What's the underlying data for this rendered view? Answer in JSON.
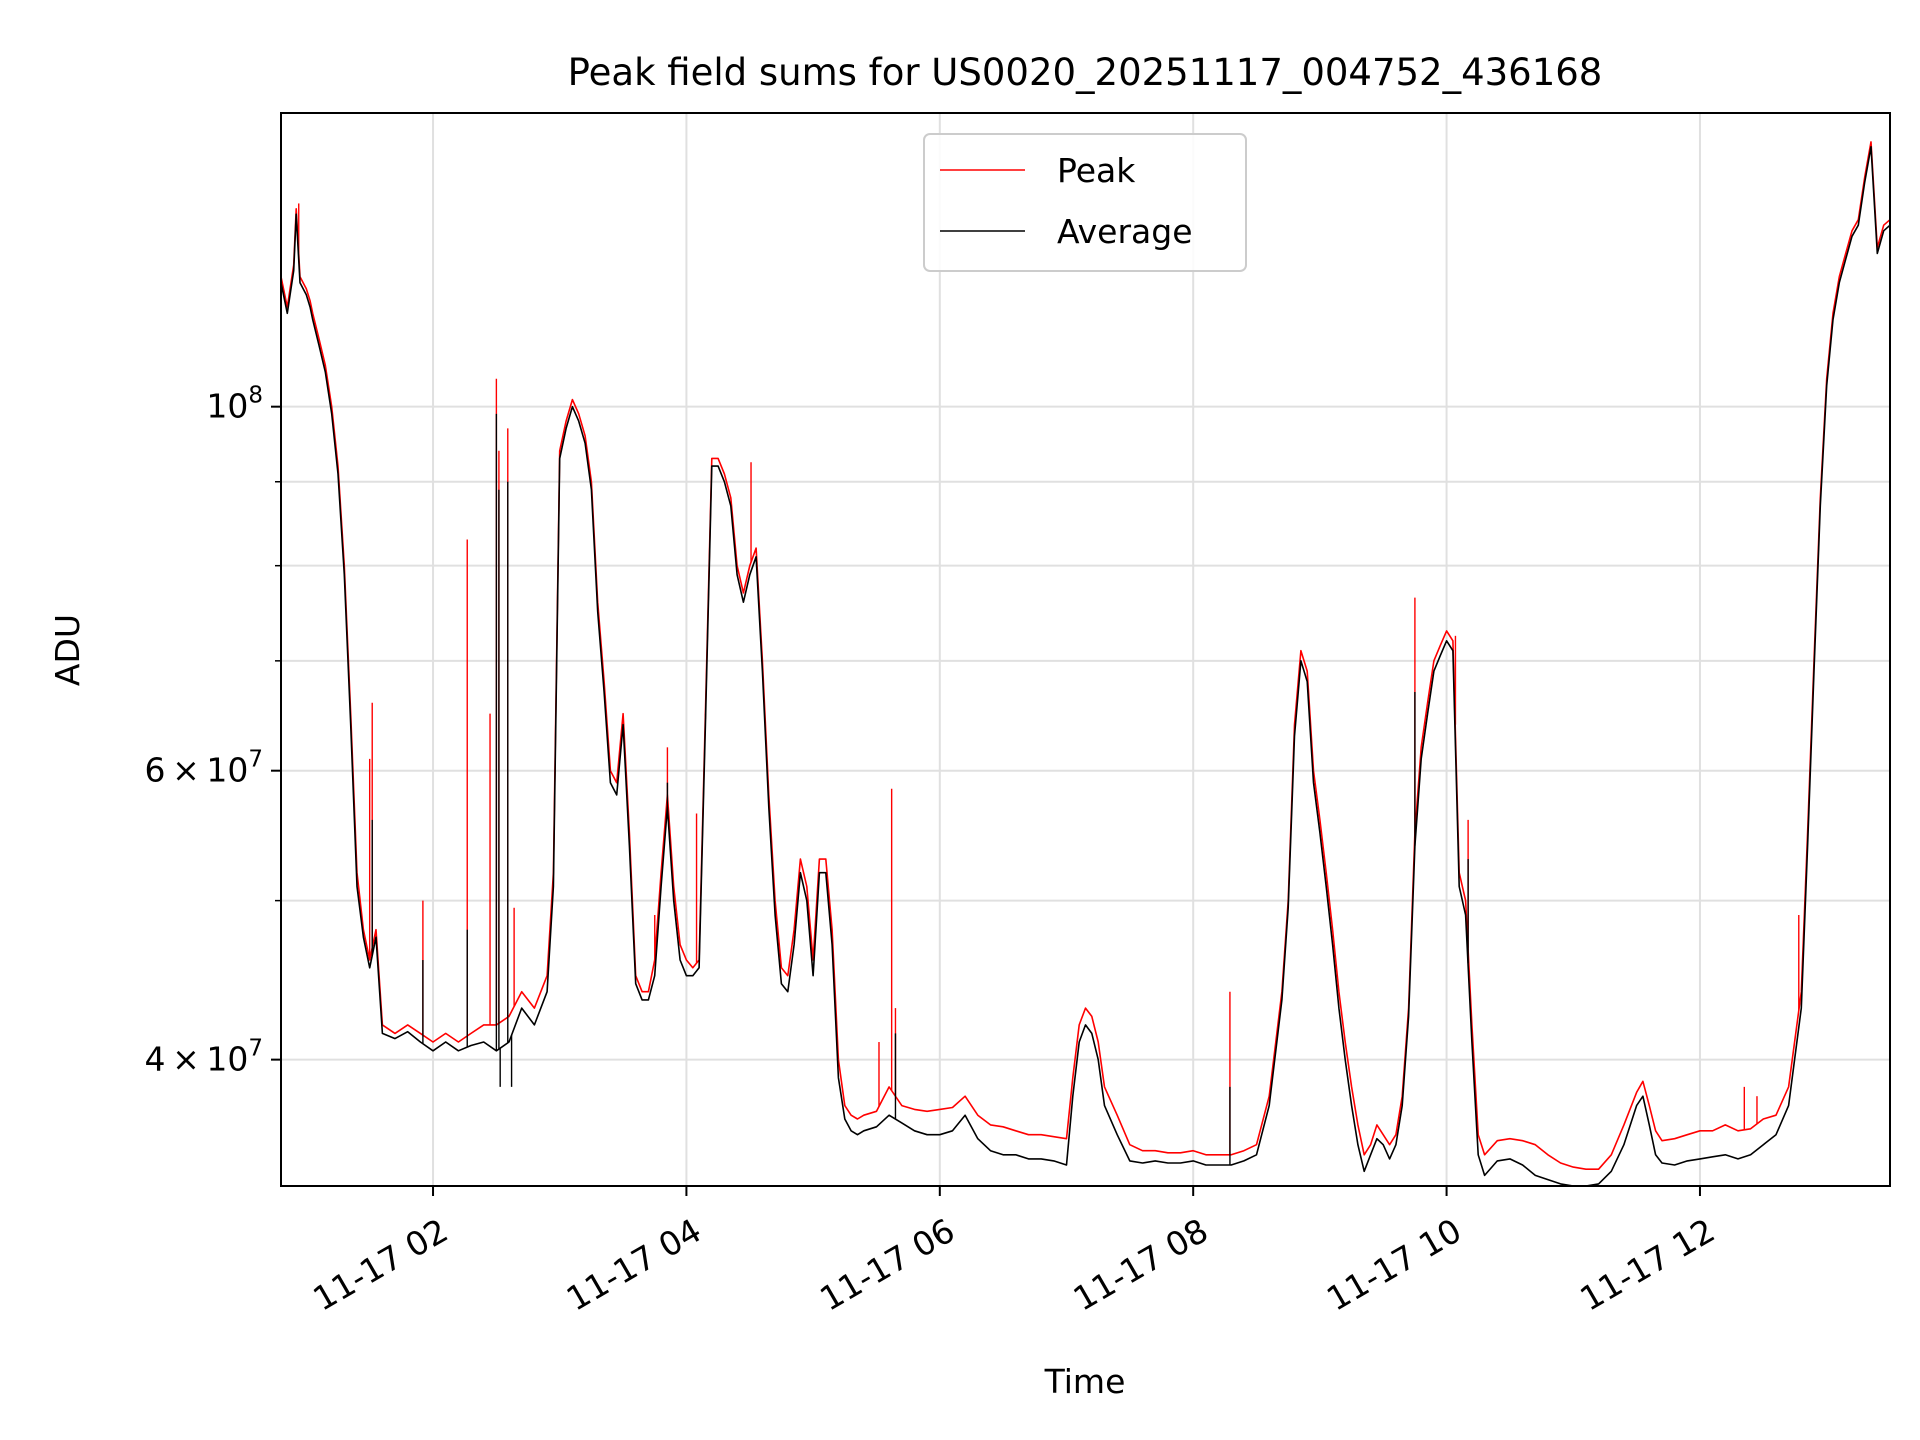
{
  "chart_data": {
    "type": "line",
    "title": "Peak field sums for US0020_20251117_004752_436168",
    "xlabel": "Time",
    "ylabel": "ADU",
    "yscale": "log",
    "grid": true,
    "legend_position": "upper-center",
    "xlim": [
      0.8,
      13.5
    ],
    "ylim": [
      33500000,
      151000000
    ],
    "x_ticks": [
      {
        "value": 2,
        "label": "11-17 02"
      },
      {
        "value": 4,
        "label": "11-17 04"
      },
      {
        "value": 6,
        "label": "11-17 06"
      },
      {
        "value": 8,
        "label": "11-17 08"
      },
      {
        "value": 10,
        "label": "11-17 10"
      },
      {
        "value": 12,
        "label": "11-17 12"
      }
    ],
    "y_ticks": [
      {
        "value": 40000000,
        "mantissa": "4",
        "exponent": "7"
      },
      {
        "value": 60000000,
        "mantissa": "6",
        "exponent": "7"
      },
      {
        "value": 100000000,
        "mantissa": "",
        "exponent": "8"
      }
    ],
    "y_minor_ticks": [
      50000000,
      70000000,
      80000000,
      90000000
    ],
    "series": [
      {
        "name": "Peak",
        "color": "#ff0000",
        "x": [
          0.8,
          0.85,
          0.9,
          0.92,
          0.95,
          1.0,
          1.03,
          1.05,
          1.1,
          1.15,
          1.2,
          1.25,
          1.3,
          1.35,
          1.4,
          1.45,
          1.5,
          1.55,
          1.6,
          1.7,
          1.8,
          1.9,
          2.0,
          2.1,
          2.2,
          2.3,
          2.4,
          2.5,
          2.6,
          2.7,
          2.8,
          2.9,
          2.95,
          3.0,
          3.05,
          3.1,
          3.15,
          3.2,
          3.25,
          3.3,
          3.35,
          3.4,
          3.45,
          3.5,
          3.55,
          3.6,
          3.65,
          3.7,
          3.75,
          3.8,
          3.85,
          3.9,
          3.95,
          4.0,
          4.05,
          4.1,
          4.15,
          4.2,
          4.25,
          4.3,
          4.35,
          4.4,
          4.45,
          4.5,
          4.55,
          4.6,
          4.65,
          4.7,
          4.75,
          4.8,
          4.85,
          4.9,
          4.95,
          5.0,
          5.05,
          5.1,
          5.15,
          5.2,
          5.25,
          5.3,
          5.35,
          5.4,
          5.5,
          5.6,
          5.7,
          5.8,
          5.9,
          6.0,
          6.1,
          6.2,
          6.3,
          6.4,
          6.5,
          6.6,
          6.7,
          6.8,
          6.9,
          7.0,
          7.05,
          7.1,
          7.15,
          7.2,
          7.25,
          7.3,
          7.4,
          7.5,
          7.6,
          7.7,
          7.8,
          7.9,
          8.0,
          8.1,
          8.2,
          8.3,
          8.4,
          8.5,
          8.6,
          8.7,
          8.75,
          8.8,
          8.85,
          8.9,
          8.95,
          9.0,
          9.05,
          9.1,
          9.15,
          9.2,
          9.25,
          9.3,
          9.35,
          9.4,
          9.45,
          9.5,
          9.55,
          9.6,
          9.65,
          9.7,
          9.75,
          9.8,
          9.85,
          9.9,
          9.95,
          10.0,
          10.05,
          10.1,
          10.15,
          10.2,
          10.25,
          10.3,
          10.4,
          10.5,
          10.6,
          10.7,
          10.8,
          10.9,
          11.0,
          11.1,
          11.2,
          11.3,
          11.4,
          11.5,
          11.55,
          11.6,
          11.65,
          11.7,
          11.8,
          11.9,
          12.0,
          12.1,
          12.2,
          12.3,
          12.4,
          12.5,
          12.6,
          12.7,
          12.8,
          12.85,
          12.9,
          12.95,
          13.0,
          13.05,
          13.1,
          13.15,
          13.2,
          13.25,
          13.3,
          13.35,
          13.4,
          13.45,
          13.5
        ],
        "values": [
          120000000.0,
          115000000.0,
          122000000.0,
          132000000.0,
          120000000.0,
          118000000.0,
          116000000.0,
          114000000.0,
          110000000.0,
          106000000.0,
          100000000.0,
          92000000.0,
          80000000.0,
          65000000.0,
          52000000.0,
          48000000.0,
          46000000.0,
          48000000.0,
          42000000.0,
          41500000.0,
          42000000.0,
          41500000.0,
          41000000.0,
          41500000.0,
          41000000.0,
          41500000.0,
          42000000.0,
          42000000.0,
          42500000.0,
          44000000.0,
          43000000.0,
          45000000.0,
          52000000.0,
          94000000.0,
          98000000.0,
          101000000.0,
          99000000.0,
          96000000.0,
          90000000.0,
          76000000.0,
          68000000.0,
          60000000.0,
          59000000.0,
          65000000.0,
          55000000.0,
          45000000.0,
          44000000.0,
          44000000.0,
          46000000.0,
          52000000.0,
          58000000.0,
          51000000.0,
          47000000.0,
          46000000.0,
          45500000.0,
          46000000.0,
          65000000.0,
          93000000.0,
          93000000.0,
          91000000.0,
          88000000.0,
          80000000.0,
          77000000.0,
          80000000.0,
          82000000.0,
          70000000.0,
          58000000.0,
          50000000.0,
          45500000.0,
          45000000.0,
          48000000.0,
          53000000.0,
          51000000.0,
          46000000.0,
          53000000.0,
          53000000.0,
          48000000.0,
          40000000.0,
          37500000.0,
          37000000.0,
          36800000.0,
          37000000.0,
          37200000.0,
          38500000.0,
          37500000.0,
          37300000.0,
          37200000.0,
          37300000.0,
          37400000.0,
          38000000.0,
          37000000.0,
          36500000.0,
          36400000.0,
          36200000.0,
          36000000.0,
          36000000.0,
          35900000.0,
          35800000.0,
          39000000.0,
          42000000.0,
          43000000.0,
          42500000.0,
          41000000.0,
          38500000.0,
          37000000.0,
          35500000.0,
          35200000.0,
          35200000.0,
          35100000.0,
          35100000.0,
          35200000.0,
          35000000.0,
          35000000.0,
          35000000.0,
          35200000.0,
          35500000.0,
          38000000.0,
          44000000.0,
          50000000.0,
          64000000.0,
          71000000.0,
          69000000.0,
          60000000.0,
          56000000.0,
          52000000.0,
          48000000.0,
          44000000.0,
          41000000.0,
          38500000.0,
          36500000.0,
          35000000.0,
          35500000.0,
          36500000.0,
          36000000.0,
          35500000.0,
          36000000.0,
          38000000.0,
          43000000.0,
          55000000.0,
          62000000.0,
          66000000.0,
          70000000.0,
          71500000.0,
          73000000.0,
          72000000.0,
          52000000.0,
          50000000.0,
          42000000.0,
          36000000.0,
          35000000.0,
          35700000.0,
          35800000.0,
          35700000.0,
          35500000.0,
          35000000.0,
          34600000.0,
          34400000.0,
          34300000.0,
          34300000.0,
          35000000.0,
          36500000.0,
          38200000.0,
          38800000.0,
          37500000.0,
          36200000.0,
          35700000.0,
          35800000.0,
          36000000.0,
          36200000.0,
          36200000.0,
          36500000.0,
          36200000.0,
          36300000.0,
          36800000.0,
          37000000.0,
          38500000.0,
          44000000.0,
          55000000.0,
          70000000.0,
          88000000.0,
          104000000.0,
          114000000.0,
          120000000.0,
          124000000.0,
          128000000.0,
          130000000.0,
          138000000.0,
          145000000.0,
          125000000.0,
          129000000.0,
          130000000.0
        ],
        "spikes": [
          {
            "x": 0.94,
            "v": 133000000.0
          },
          {
            "x": 1.5,
            "v": 61000000.0
          },
          {
            "x": 1.52,
            "v": 66000000.0
          },
          {
            "x": 1.92,
            "v": 50000000.0
          },
          {
            "x": 2.27,
            "v": 83000000.0
          },
          {
            "x": 2.45,
            "v": 65000000.0
          },
          {
            "x": 2.5,
            "v": 104000000.0
          },
          {
            "x": 2.52,
            "v": 94000000.0
          },
          {
            "x": 2.59,
            "v": 97000000.0
          },
          {
            "x": 2.64,
            "v": 49500000.0
          },
          {
            "x": 3.75,
            "v": 49000000.0
          },
          {
            "x": 3.85,
            "v": 62000000.0
          },
          {
            "x": 4.08,
            "v": 56500000.0
          },
          {
            "x": 4.15,
            "v": 64500000.0
          },
          {
            "x": 4.51,
            "v": 92500000.0
          },
          {
            "x": 5.52,
            "v": 41000000.0
          },
          {
            "x": 5.62,
            "v": 58500000.0
          },
          {
            "x": 5.65,
            "v": 43000000.0
          },
          {
            "x": 8.29,
            "v": 44000000.0
          },
          {
            "x": 9.75,
            "v": 76500000.0
          },
          {
            "x": 10.07,
            "v": 72500000.0
          },
          {
            "x": 10.17,
            "v": 56000000.0
          },
          {
            "x": 12.35,
            "v": 38500000.0
          },
          {
            "x": 12.45,
            "v": 38000000.0
          },
          {
            "x": 12.78,
            "v": 49000000.0
          }
        ]
      },
      {
        "name": "Average",
        "color": "#000000",
        "x": [
          0.8,
          0.85,
          0.9,
          0.92,
          0.95,
          1.0,
          1.03,
          1.05,
          1.1,
          1.15,
          1.2,
          1.25,
          1.3,
          1.35,
          1.4,
          1.45,
          1.5,
          1.55,
          1.6,
          1.7,
          1.8,
          1.9,
          2.0,
          2.1,
          2.2,
          2.3,
          2.4,
          2.5,
          2.6,
          2.7,
          2.8,
          2.9,
          2.95,
          3.0,
          3.05,
          3.1,
          3.15,
          3.2,
          3.25,
          3.3,
          3.35,
          3.4,
          3.45,
          3.5,
          3.55,
          3.6,
          3.65,
          3.7,
          3.75,
          3.8,
          3.85,
          3.9,
          3.95,
          4.0,
          4.05,
          4.1,
          4.15,
          4.2,
          4.25,
          4.3,
          4.35,
          4.4,
          4.45,
          4.5,
          4.55,
          4.6,
          4.65,
          4.7,
          4.75,
          4.8,
          4.85,
          4.9,
          4.95,
          5.0,
          5.05,
          5.1,
          5.15,
          5.2,
          5.25,
          5.3,
          5.35,
          5.4,
          5.5,
          5.6,
          5.7,
          5.8,
          5.9,
          6.0,
          6.1,
          6.2,
          6.3,
          6.4,
          6.5,
          6.6,
          6.7,
          6.8,
          6.9,
          7.0,
          7.05,
          7.1,
          7.15,
          7.2,
          7.25,
          7.3,
          7.4,
          7.5,
          7.6,
          7.7,
          7.8,
          7.9,
          8.0,
          8.1,
          8.2,
          8.3,
          8.4,
          8.5,
          8.6,
          8.7,
          8.75,
          8.8,
          8.85,
          8.9,
          8.95,
          9.0,
          9.05,
          9.1,
          9.15,
          9.2,
          9.25,
          9.3,
          9.35,
          9.4,
          9.45,
          9.5,
          9.55,
          9.6,
          9.65,
          9.7,
          9.75,
          9.8,
          9.85,
          9.9,
          9.95,
          10.0,
          10.05,
          10.1,
          10.15,
          10.2,
          10.25,
          10.3,
          10.4,
          10.5,
          10.6,
          10.7,
          10.8,
          10.9,
          11.0,
          11.1,
          11.2,
          11.3,
          11.4,
          11.5,
          11.55,
          11.6,
          11.65,
          11.7,
          11.8,
          11.9,
          12.0,
          12.1,
          12.2,
          12.3,
          12.4,
          12.5,
          12.6,
          12.7,
          12.8,
          12.85,
          12.9,
          12.95,
          13.0,
          13.05,
          13.1,
          13.15,
          13.2,
          13.25,
          13.3,
          13.35,
          13.4,
          13.45,
          13.5
        ],
        "values": [
          119000000.0,
          114000000.0,
          121000000.0,
          131000000.0,
          119000000.0,
          117000000.0,
          115000000.0,
          113000000.0,
          109000000.0,
          105000000.0,
          99000000.0,
          91000000.0,
          79000000.0,
          64000000.0,
          51000000.0,
          47500000.0,
          45500000.0,
          47500000.0,
          41500000.0,
          41200000.0,
          41600000.0,
          41000000.0,
          40500000.0,
          41000000.0,
          40500000.0,
          40800000.0,
          41000000.0,
          40500000.0,
          41000000.0,
          43000000.0,
          42000000.0,
          44000000.0,
          51000000.0,
          93000000.0,
          97000000.0,
          100000000.0,
          98000000.0,
          95000000.0,
          89000000.0,
          75000000.0,
          67000000.0,
          59000000.0,
          58000000.0,
          64000000.0,
          54000000.0,
          44500000.0,
          43500000.0,
          43500000.0,
          45000000.0,
          51000000.0,
          57000000.0,
          50000000.0,
          46000000.0,
          45000000.0,
          45000000.0,
          45500000.0,
          64000000.0,
          92000000.0,
          92000000.0,
          90000000.0,
          87000000.0,
          79000000.0,
          76000000.0,
          79000000.0,
          81000000.0,
          69000000.0,
          57000000.0,
          49000000.0,
          44500000.0,
          44000000.0,
          47000000.0,
          52000000.0,
          50000000.0,
          45000000.0,
          52000000.0,
          52000000.0,
          47000000.0,
          39000000.0,
          36800000.0,
          36200000.0,
          36000000.0,
          36200000.0,
          36400000.0,
          37000000.0,
          36600000.0,
          36200000.0,
          36000000.0,
          36000000.0,
          36200000.0,
          37000000.0,
          35800000.0,
          35200000.0,
          35000000.0,
          35000000.0,
          34800000.0,
          34800000.0,
          34700000.0,
          34500000.0,
          38000000.0,
          41000000.0,
          42000000.0,
          41500000.0,
          40000000.0,
          37500000.0,
          36000000.0,
          34700000.0,
          34600000.0,
          34700000.0,
          34600000.0,
          34600000.0,
          34700000.0,
          34500000.0,
          34500000.0,
          34500000.0,
          34700000.0,
          35000000.0,
          37500000.0,
          43500000.0,
          49500000.0,
          63000000.0,
          70000000.0,
          68000000.0,
          59000000.0,
          55000000.0,
          51000000.0,
          47000000.0,
          43000000.0,
          40000000.0,
          37500000.0,
          35500000.0,
          34200000.0,
          35000000.0,
          35800000.0,
          35500000.0,
          34800000.0,
          35500000.0,
          37500000.0,
          42500000.0,
          54000000.0,
          61000000.0,
          65000000.0,
          69000000.0,
          70500000.0,
          72000000.0,
          71000000.0,
          51000000.0,
          49000000.0,
          41000000.0,
          35000000.0,
          34000000.0,
          34700000.0,
          34800000.0,
          34500000.0,
          34000000.0,
          33800000.0,
          33600000.0,
          33500000.0,
          33500000.0,
          33600000.0,
          34200000.0,
          35500000.0,
          37500000.0,
          38000000.0,
          36500000.0,
          35000000.0,
          34600000.0,
          34500000.0,
          34700000.0,
          34800000.0,
          34900000.0,
          35000000.0,
          34800000.0,
          35000000.0,
          35500000.0,
          36000000.0,
          37500000.0,
          43000000.0,
          54000000.0,
          69000000.0,
          87000000.0,
          103000000.0,
          113000000.0,
          119000000.0,
          123000000.0,
          127000000.0,
          129000000.0,
          137000000.0,
          144000000.0,
          124000000.0,
          128000000.0,
          129000000.0
        ],
        "spikes": [
          {
            "x": 1.52,
            "v": 56000000.0
          },
          {
            "x": 1.92,
            "v": 46000000.0
          },
          {
            "x": 2.27,
            "v": 48000000.0
          },
          {
            "x": 2.5,
            "v": 99000000.0
          },
          {
            "x": 2.52,
            "v": 89000000.0
          },
          {
            "x": 2.59,
            "v": 90000000.0
          },
          {
            "x": 2.53,
            "v": 38500000.0
          },
          {
            "x": 2.62,
            "v": 38500000.0
          },
          {
            "x": 3.85,
            "v": 59000000.0
          },
          {
            "x": 5.65,
            "v": 41500000.0
          },
          {
            "x": 8.29,
            "v": 38500000.0
          },
          {
            "x": 9.75,
            "v": 67000000.0
          },
          {
            "x": 10.17,
            "v": 53000000.0
          }
        ]
      }
    ]
  }
}
